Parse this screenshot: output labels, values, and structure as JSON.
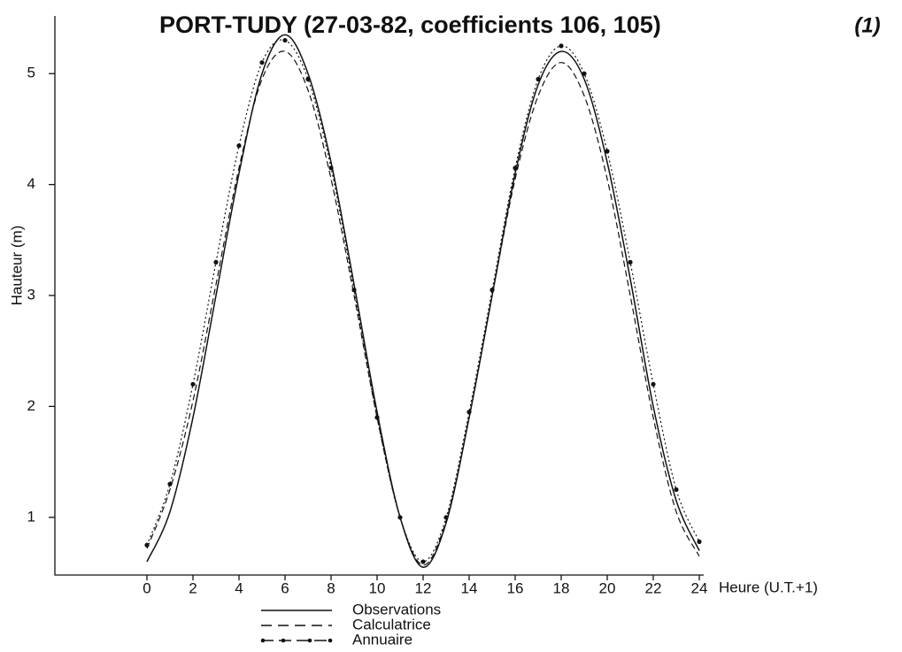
{
  "chart_data": {
    "type": "line",
    "title": "PORT-TUDY (27-03-82, coefficients 106, 105)",
    "note": "(1)",
    "xlabel": "Heure (U.T.+1)",
    "ylabel": "Hauteur (m)",
    "x": [
      0,
      1,
      2,
      3,
      4,
      5,
      6,
      7,
      8,
      9,
      10,
      11,
      12,
      13,
      14,
      15,
      16,
      17,
      18,
      19,
      20,
      21,
      22,
      23,
      24
    ],
    "series": [
      {
        "name": "Observations",
        "color": "#111111",
        "style": "solid",
        "values": [
          0.6,
          1.05,
          1.9,
          3.0,
          4.1,
          5.0,
          5.35,
          5.0,
          4.2,
          3.1,
          1.95,
          1.0,
          0.55,
          0.95,
          1.9,
          3.0,
          4.1,
          4.9,
          5.2,
          4.95,
          4.2,
          3.15,
          2.0,
          1.15,
          0.7
        ]
      },
      {
        "name": "Calculatrice",
        "color": "#111111",
        "style": "dashed",
        "values": [
          0.72,
          1.25,
          2.05,
          3.1,
          4.15,
          4.95,
          5.2,
          4.85,
          4.05,
          3.0,
          1.9,
          1.0,
          0.57,
          0.97,
          1.9,
          3.0,
          4.05,
          4.8,
          5.1,
          4.8,
          4.05,
          3.0,
          1.9,
          1.05,
          0.65
        ]
      },
      {
        "name": "Annuaire",
        "color": "#111111",
        "style": "dash-dot-marker",
        "values": [
          0.75,
          1.3,
          2.2,
          3.3,
          4.35,
          5.1,
          5.3,
          4.95,
          4.15,
          3.05,
          1.9,
          1.0,
          0.6,
          1.0,
          1.95,
          3.05,
          4.15,
          4.95,
          5.25,
          5.0,
          4.3,
          3.3,
          2.2,
          1.25,
          0.78
        ]
      }
    ],
    "xlim": [
      -4,
      24
    ],
    "xticks": [
      0,
      2,
      4,
      6,
      8,
      10,
      12,
      14,
      16,
      18,
      20,
      22,
      24
    ],
    "ylim": [
      0.48,
      5.52
    ],
    "yticks": [
      1,
      2,
      3,
      4,
      5
    ],
    "grid": false
  }
}
